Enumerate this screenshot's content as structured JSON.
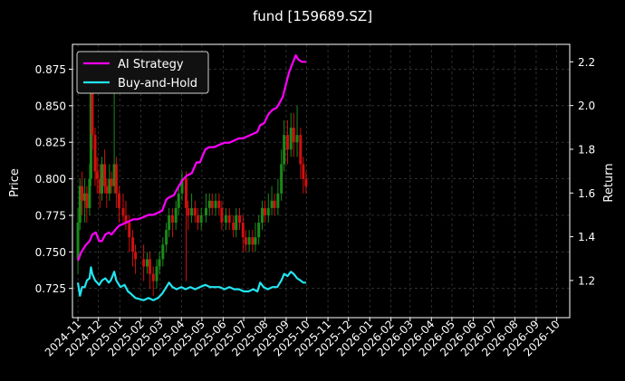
{
  "chart_data": {
    "type": "line",
    "title": "fund [159689.SZ]",
    "xlabel": "",
    "ylabel": "Price",
    "ylabel_right": "Return",
    "x_ticks": [
      "2024-11",
      "2024-12",
      "2025-01",
      "2025-02",
      "2025-03",
      "2025-04",
      "2025-05",
      "2025-06",
      "2025-07",
      "2025-08",
      "2025-09",
      "2025-10",
      "2025-11",
      "2025-12",
      "2026-01",
      "2026-02",
      "2026-03",
      "2026-04",
      "2026-05",
      "2026-06",
      "2026-07",
      "2026-08",
      "2026-09",
      "2026-10"
    ],
    "xlim": [
      "2024-10-24",
      "2026-10-20"
    ],
    "ylim_left": [
      0.705,
      0.892
    ],
    "ylim_right": [
      1.03,
      2.28
    ],
    "yticks_left": [
      0.725,
      0.75,
      0.775,
      0.8,
      0.825,
      0.85,
      0.875
    ],
    "yticks_right": [
      1.2,
      1.4,
      1.6,
      1.8,
      2.0,
      2.2
    ],
    "grid": true,
    "legend": "top-left",
    "colors": {
      "background": "#000000",
      "grid": "#4a4a4a",
      "ai_strategy": "#ff00ff",
      "buy_and_hold": "#22e5f0",
      "candle_up": "#1a8a1a",
      "candle_down": "#d01010"
    },
    "series": [
      {
        "name": "AI Strategy",
        "axis": "right",
        "points": [
          [
            "2024-11-01",
            1.29
          ],
          [
            "2024-11-06",
            1.33
          ],
          [
            "2024-11-12",
            1.36
          ],
          [
            "2024-11-18",
            1.38
          ],
          [
            "2024-11-22",
            1.41
          ],
          [
            "2024-11-27",
            1.42
          ],
          [
            "2024-12-02",
            1.38
          ],
          [
            "2024-12-06",
            1.38
          ],
          [
            "2024-12-11",
            1.41
          ],
          [
            "2024-12-16",
            1.42
          ],
          [
            "2024-12-20",
            1.41
          ],
          [
            "2024-12-25",
            1.43
          ],
          [
            "2024-12-31",
            1.45
          ],
          [
            "2025-01-07",
            1.46
          ],
          [
            "2025-01-14",
            1.47
          ],
          [
            "2025-01-21",
            1.48
          ],
          [
            "2025-01-27",
            1.48
          ],
          [
            "2025-02-05",
            1.49
          ],
          [
            "2025-02-12",
            1.5
          ],
          [
            "2025-02-19",
            1.5
          ],
          [
            "2025-02-26",
            1.51
          ],
          [
            "2025-03-04",
            1.52
          ],
          [
            "2025-03-10",
            1.57
          ],
          [
            "2025-03-14",
            1.58
          ],
          [
            "2025-03-21",
            1.59
          ],
          [
            "2025-03-28",
            1.63
          ],
          [
            "2025-04-03",
            1.66
          ],
          [
            "2025-04-09",
            1.68
          ],
          [
            "2025-04-16",
            1.69
          ],
          [
            "2025-04-23",
            1.74
          ],
          [
            "2025-04-28",
            1.74
          ],
          [
            "2025-05-06",
            1.8
          ],
          [
            "2025-05-12",
            1.81
          ],
          [
            "2025-05-19",
            1.81
          ],
          [
            "2025-05-26",
            1.82
          ],
          [
            "2025-06-03",
            1.83
          ],
          [
            "2025-06-10",
            1.83
          ],
          [
            "2025-06-17",
            1.84
          ],
          [
            "2025-06-24",
            1.85
          ],
          [
            "2025-06-30",
            1.85
          ],
          [
            "2025-07-07",
            1.86
          ],
          [
            "2025-07-14",
            1.87
          ],
          [
            "2025-07-21",
            1.88
          ],
          [
            "2025-07-25",
            1.91
          ],
          [
            "2025-07-31",
            1.92
          ],
          [
            "2025-08-06",
            1.96
          ],
          [
            "2025-08-12",
            1.98
          ],
          [
            "2025-08-18",
            1.99
          ],
          [
            "2025-08-22",
            2.01
          ],
          [
            "2025-08-27",
            2.04
          ],
          [
            "2025-09-01",
            2.1
          ],
          [
            "2025-09-05",
            2.15
          ],
          [
            "2025-09-10",
            2.19
          ],
          [
            "2025-09-15",
            2.23
          ],
          [
            "2025-09-19",
            2.21
          ],
          [
            "2025-09-24",
            2.2
          ],
          [
            "2025-09-30",
            2.2
          ]
        ]
      },
      {
        "name": "Buy-and-Hold",
        "axis": "right",
        "points": [
          [
            "2024-11-01",
            1.19
          ],
          [
            "2024-11-04",
            1.13
          ],
          [
            "2024-11-07",
            1.17
          ],
          [
            "2024-11-11",
            1.17
          ],
          [
            "2024-11-14",
            1.2
          ],
          [
            "2024-11-18",
            1.21
          ],
          [
            "2024-11-20",
            1.26
          ],
          [
            "2024-11-22",
            1.23
          ],
          [
            "2024-11-26",
            1.2
          ],
          [
            "2024-12-02",
            1.18
          ],
          [
            "2024-12-06",
            1.2
          ],
          [
            "2024-12-11",
            1.21
          ],
          [
            "2024-12-16",
            1.19
          ],
          [
            "2024-12-19",
            1.2
          ],
          [
            "2024-12-24",
            1.24
          ],
          [
            "2024-12-27",
            1.2
          ],
          [
            "2025-01-02",
            1.17
          ],
          [
            "2025-01-08",
            1.18
          ],
          [
            "2025-01-13",
            1.15
          ],
          [
            "2025-01-17",
            1.14
          ],
          [
            "2025-01-24",
            1.12
          ],
          [
            "2025-02-05",
            1.11
          ],
          [
            "2025-02-12",
            1.12
          ],
          [
            "2025-02-19",
            1.11
          ],
          [
            "2025-02-26",
            1.12
          ],
          [
            "2025-03-04",
            1.14
          ],
          [
            "2025-03-10",
            1.17
          ],
          [
            "2025-03-14",
            1.19
          ],
          [
            "2025-03-19",
            1.17
          ],
          [
            "2025-03-25",
            1.16
          ],
          [
            "2025-04-01",
            1.17
          ],
          [
            "2025-04-07",
            1.16
          ],
          [
            "2025-04-14",
            1.17
          ],
          [
            "2025-04-21",
            1.16
          ],
          [
            "2025-04-28",
            1.17
          ],
          [
            "2025-05-06",
            1.18
          ],
          [
            "2025-05-13",
            1.17
          ],
          [
            "2025-05-20",
            1.17
          ],
          [
            "2025-05-27",
            1.17
          ],
          [
            "2025-06-03",
            1.16
          ],
          [
            "2025-06-10",
            1.17
          ],
          [
            "2025-06-17",
            1.16
          ],
          [
            "2025-06-24",
            1.16
          ],
          [
            "2025-07-01",
            1.15
          ],
          [
            "2025-07-08",
            1.15
          ],
          [
            "2025-07-15",
            1.16
          ],
          [
            "2025-07-21",
            1.15
          ],
          [
            "2025-07-25",
            1.19
          ],
          [
            "2025-07-30",
            1.17
          ],
          [
            "2025-08-05",
            1.16
          ],
          [
            "2025-08-12",
            1.17
          ],
          [
            "2025-08-19",
            1.17
          ],
          [
            "2025-08-25",
            1.2
          ],
          [
            "2025-08-29",
            1.23
          ],
          [
            "2025-09-03",
            1.22
          ],
          [
            "2025-09-08",
            1.24
          ],
          [
            "2025-09-12",
            1.23
          ],
          [
            "2025-09-17",
            1.21
          ],
          [
            "2025-09-22",
            1.2
          ],
          [
            "2025-09-26",
            1.19
          ],
          [
            "2025-09-30",
            1.19
          ]
        ]
      }
    ],
    "candles": [
      [
        "2024-11-01",
        0.745,
        0.77,
        0.735,
        0.78
      ],
      [
        "2024-11-04",
        0.77,
        0.795,
        0.765,
        0.8
      ],
      [
        "2024-11-07",
        0.795,
        0.785,
        0.775,
        0.805
      ],
      [
        "2024-11-11",
        0.785,
        0.79,
        0.77,
        0.8
      ],
      [
        "2024-11-14",
        0.79,
        0.78,
        0.77,
        0.795
      ],
      [
        "2024-11-18",
        0.78,
        0.8,
        0.775,
        0.81
      ],
      [
        "2024-11-20",
        0.8,
        0.86,
        0.795,
        0.865
      ],
      [
        "2024-11-22",
        0.86,
        0.83,
        0.82,
        0.87
      ],
      [
        "2024-11-26",
        0.83,
        0.805,
        0.795,
        0.835
      ],
      [
        "2024-11-29",
        0.805,
        0.8,
        0.79,
        0.815
      ],
      [
        "2024-12-03",
        0.8,
        0.79,
        0.78,
        0.81
      ],
      [
        "2024-12-06",
        0.79,
        0.81,
        0.785,
        0.815
      ],
      [
        "2024-12-10",
        0.81,
        0.795,
        0.79,
        0.82
      ],
      [
        "2024-12-13",
        0.795,
        0.79,
        0.78,
        0.8
      ],
      [
        "2024-12-17",
        0.79,
        0.8,
        0.785,
        0.81
      ],
      [
        "2024-12-20",
        0.8,
        0.795,
        0.79,
        0.805
      ],
      [
        "2024-12-24",
        0.795,
        0.81,
        0.79,
        0.86
      ],
      [
        "2024-12-27",
        0.81,
        0.79,
        0.78,
        0.815
      ],
      [
        "2024-12-31",
        0.79,
        0.78,
        0.77,
        0.795
      ],
      [
        "2025-01-06",
        0.78,
        0.775,
        0.77,
        0.79
      ],
      [
        "2025-01-10",
        0.775,
        0.77,
        0.765,
        0.785
      ],
      [
        "2025-01-15",
        0.77,
        0.76,
        0.75,
        0.775
      ],
      [
        "2025-01-20",
        0.76,
        0.75,
        0.74,
        0.765
      ],
      [
        "2025-01-24",
        0.75,
        0.745,
        0.735,
        0.755
      ],
      [
        "2025-02-05",
        0.745,
        0.74,
        0.73,
        0.755
      ],
      [
        "2025-02-10",
        0.74,
        0.745,
        0.735,
        0.75
      ],
      [
        "2025-02-14",
        0.745,
        0.735,
        0.725,
        0.75
      ],
      [
        "2025-02-19",
        0.735,
        0.73,
        0.72,
        0.74
      ],
      [
        "2025-02-24",
        0.73,
        0.74,
        0.725,
        0.745
      ],
      [
        "2025-02-28",
        0.74,
        0.745,
        0.735,
        0.75
      ],
      [
        "2025-03-05",
        0.745,
        0.755,
        0.74,
        0.76
      ],
      [
        "2025-03-10",
        0.755,
        0.765,
        0.75,
        0.77
      ],
      [
        "2025-03-14",
        0.765,
        0.775,
        0.76,
        0.78
      ],
      [
        "2025-03-19",
        0.775,
        0.77,
        0.76,
        0.78
      ],
      [
        "2025-03-24",
        0.77,
        0.78,
        0.765,
        0.785
      ],
      [
        "2025-03-28",
        0.78,
        0.79,
        0.775,
        0.795
      ],
      [
        "2025-04-02",
        0.79,
        0.8,
        0.785,
        0.805
      ],
      [
        "2025-04-08",
        0.8,
        0.78,
        0.73,
        0.805
      ],
      [
        "2025-04-11",
        0.78,
        0.775,
        0.765,
        0.785
      ],
      [
        "2025-04-16",
        0.775,
        0.78,
        0.77,
        0.79
      ],
      [
        "2025-04-21",
        0.78,
        0.775,
        0.77,
        0.785
      ],
      [
        "2025-04-25",
        0.775,
        0.77,
        0.765,
        0.78
      ],
      [
        "2025-04-30",
        0.77,
        0.775,
        0.765,
        0.78
      ],
      [
        "2025-05-07",
        0.775,
        0.78,
        0.77,
        0.79
      ],
      [
        "2025-05-12",
        0.78,
        0.785,
        0.775,
        0.79
      ],
      [
        "2025-05-16",
        0.785,
        0.78,
        0.775,
        0.79
      ],
      [
        "2025-05-21",
        0.78,
        0.785,
        0.775,
        0.79
      ],
      [
        "2025-05-26",
        0.785,
        0.78,
        0.775,
        0.79
      ],
      [
        "2025-05-30",
        0.78,
        0.77,
        0.765,
        0.785
      ],
      [
        "2025-06-05",
        0.77,
        0.775,
        0.765,
        0.78
      ],
      [
        "2025-06-10",
        0.775,
        0.77,
        0.765,
        0.78
      ],
      [
        "2025-06-16",
        0.77,
        0.765,
        0.76,
        0.775
      ],
      [
        "2025-06-20",
        0.765,
        0.775,
        0.76,
        0.78
      ],
      [
        "2025-06-25",
        0.775,
        0.77,
        0.765,
        0.78
      ],
      [
        "2025-06-30",
        0.77,
        0.76,
        0.75,
        0.775
      ],
      [
        "2025-07-04",
        0.76,
        0.755,
        0.75,
        0.765
      ],
      [
        "2025-07-09",
        0.755,
        0.76,
        0.75,
        0.765
      ],
      [
        "2025-07-14",
        0.76,
        0.755,
        0.75,
        0.765
      ],
      [
        "2025-07-18",
        0.755,
        0.76,
        0.75,
        0.77
      ],
      [
        "2025-07-23",
        0.76,
        0.77,
        0.755,
        0.775
      ],
      [
        "2025-07-28",
        0.77,
        0.78,
        0.765,
        0.785
      ],
      [
        "2025-08-01",
        0.78,
        0.775,
        0.77,
        0.785
      ],
      [
        "2025-08-06",
        0.775,
        0.78,
        0.77,
        0.79
      ],
      [
        "2025-08-11",
        0.78,
        0.785,
        0.775,
        0.795
      ],
      [
        "2025-08-15",
        0.785,
        0.78,
        0.775,
        0.79
      ],
      [
        "2025-08-20",
        0.78,
        0.79,
        0.775,
        0.8
      ],
      [
        "2025-08-25",
        0.79,
        0.81,
        0.785,
        0.82
      ],
      [
        "2025-08-29",
        0.81,
        0.83,
        0.805,
        0.84
      ],
      [
        "2025-09-03",
        0.83,
        0.82,
        0.81,
        0.84
      ],
      [
        "2025-09-08",
        0.82,
        0.835,
        0.815,
        0.845
      ],
      [
        "2025-09-12",
        0.835,
        0.825,
        0.815,
        0.845
      ],
      [
        "2025-09-17",
        0.825,
        0.83,
        0.815,
        0.85
      ],
      [
        "2025-09-22",
        0.83,
        0.81,
        0.8,
        0.835
      ],
      [
        "2025-09-26",
        0.81,
        0.8,
        0.79,
        0.815
      ],
      [
        "2025-09-30",
        0.8,
        0.795,
        0.79,
        0.805
      ]
    ]
  }
}
